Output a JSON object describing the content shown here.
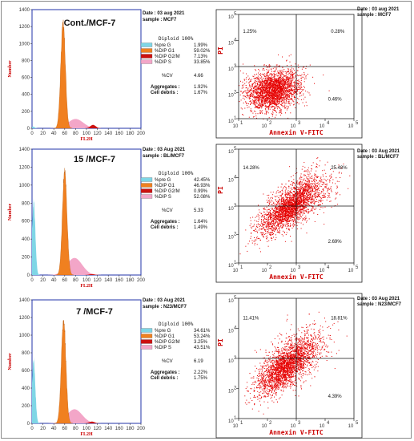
{
  "colors": {
    "pre_g": "#7fd6e6",
    "g1": "#f08020",
    "g2m": "#cc1010",
    "s": "#f3a6c8",
    "s_band": "#4a7cc8",
    "dots": "#e60000",
    "axis_blue": "#2233aa"
  },
  "histogram_axes": {
    "xlabel": "FL2H",
    "ylabel": "Number",
    "xticks": [
      "0",
      "20",
      "40",
      "60",
      "80",
      "100",
      "120",
      "140",
      "160",
      "180",
      "200"
    ],
    "yticks": [
      "0",
      "200",
      "400",
      "600",
      "800",
      "1000",
      "1200",
      "1400"
    ]
  },
  "legend_labels": {
    "diploid": "Diploid 100%",
    "pre_g": "%pre G",
    "g1": "%DIP G1",
    "g2m": "%DIP G2/M",
    "s": "%DIP S",
    "cv": "%CV",
    "aggregates": "Aggregates :",
    "debris": "Cell debris :"
  },
  "dot_axes": {
    "xlabel": "Annexin V-FITC",
    "ylabel": "PI",
    "xticks": [
      "1",
      "2",
      "3",
      "4",
      "5"
    ],
    "yticks": [
      "1",
      "2",
      "3",
      "4",
      "5"
    ],
    "tick_base": "10"
  },
  "panels": [
    {
      "title": "Cont./MCF-7",
      "date": "Date : 03 aug 2021",
      "sample": "sample : MCF7",
      "pre_g": "1.99%",
      "g1": "59.02%",
      "g2m": "7.13%",
      "s": "33.85%",
      "cv": "4.66",
      "aggregates": "1.92%",
      "debris": "1.67%",
      "quad_ul": "1.25%",
      "quad_ur": "0.28%",
      "quad_lr": "0.46%"
    },
    {
      "title": "15 /MCF-7",
      "date": "Date : 03 Aug 2021",
      "sample": "sample : BL/MCF7",
      "pre_g": "42.45%",
      "g1": "46.93%",
      "g2m": "0.99%",
      "s": "52.08%",
      "cv": "5.33",
      "aggregates": "1.64%",
      "debris": "1.49%",
      "quad_ul": "14.28%",
      "quad_ur": "25.48%",
      "quad_lr": "2.69%"
    },
    {
      "title": "7 /MCF-7",
      "date": "Date : 03 Aug 2021",
      "sample": "sample : N23/MCF7",
      "pre_g": "34.61%",
      "g1": "53.24%",
      "g2m": "3.25%",
      "s": "43.51%",
      "cv": "6.19",
      "aggregates": "2.22%",
      "debris": "1.75%",
      "quad_ul": "11.41%",
      "quad_ur": "18.81%",
      "quad_lr": "4.39%"
    }
  ],
  "chart_data": [
    {
      "type": "area",
      "title": "Cont./MCF-7",
      "xlabel": "FL2H",
      "ylabel": "Number",
      "xlim": [
        0,
        200
      ],
      "ylim": [
        0,
        1400
      ],
      "series": [
        {
          "name": "%pre G",
          "value": 1.99
        },
        {
          "name": "%DIP G1",
          "value": 59.02
        },
        {
          "name": "%DIP G2/M",
          "value": 7.13
        },
        {
          "name": "%DIP S",
          "value": 33.85
        }
      ],
      "peaks": {
        "pre_g": {
          "center": 2,
          "height": 20
        },
        "g1": {
          "center": 57,
          "height": 1260
        },
        "s": {
          "center": 80,
          "height": 110
        },
        "g2m": {
          "center": 112,
          "height": 40
        }
      },
      "cv": 4.66
    },
    {
      "type": "scatter",
      "title": "Cont./MCF-7",
      "xlabel": "Annexin V-FITC",
      "ylabel": "PI",
      "xlim": [
        1,
        5
      ],
      "ylim": [
        1,
        5
      ],
      "quadrants": {
        "upper_left": 1.25,
        "upper_right": 0.28,
        "lower_right": 0.46
      },
      "gates": {
        "x": 3,
        "y": 3
      },
      "cloud": {
        "cx": 2.2,
        "cy": 2.1,
        "sx": 0.45,
        "sy": 0.38,
        "corr": 0.2,
        "n": 2600,
        "upper_right_tail": 0.0
      }
    },
    {
      "type": "area",
      "title": "15 /MCF-7",
      "xlabel": "FL2H",
      "ylabel": "Number",
      "xlim": [
        0,
        200
      ],
      "ylim": [
        0,
        1400
      ],
      "series": [
        {
          "name": "%pre G",
          "value": 42.45
        },
        {
          "name": "%DIP G1",
          "value": 46.93
        },
        {
          "name": "%DIP G2/M",
          "value": 0.99
        },
        {
          "name": "%DIP S",
          "value": 52.08
        }
      ],
      "peaks": {
        "pre_g": {
          "center": 3,
          "height": 820
        },
        "g1": {
          "center": 60,
          "height": 1140
        },
        "s": {
          "center": 78,
          "height": 190
        },
        "g2m": {
          "center": 110,
          "height": 10
        }
      },
      "cv": 5.33
    },
    {
      "type": "scatter",
      "title": "15 /MCF-7",
      "xlabel": "Annexin V-FITC",
      "ylabel": "PI",
      "xlim": [
        1,
        5
      ],
      "ylim": [
        1,
        5
      ],
      "quadrants": {
        "upper_left": 14.28,
        "upper_right": 25.48,
        "lower_right": 2.69
      },
      "gates": {
        "x": 3,
        "y": 3
      },
      "cloud": {
        "cx": 2.7,
        "cy": 2.9,
        "sx": 0.5,
        "sy": 0.45,
        "corr": 0.75,
        "n": 2800,
        "upper_right_tail": 0.3
      }
    },
    {
      "type": "area",
      "title": "7 /MCF-7",
      "xlabel": "FL2H",
      "ylabel": "Number",
      "xlim": [
        0,
        200
      ],
      "ylim": [
        0,
        1400
      ],
      "series": [
        {
          "name": "%pre G",
          "value": 34.61
        },
        {
          "name": "%DIP G1",
          "value": 53.24
        },
        {
          "name": "%DIP G2/M",
          "value": 3.25
        },
        {
          "name": "%DIP S",
          "value": 43.51
        }
      ],
      "peaks": {
        "pre_g": {
          "center": 3,
          "height": 720
        },
        "g1": {
          "center": 58,
          "height": 1170
        },
        "s": {
          "center": 78,
          "height": 160
        },
        "g2m": {
          "center": 110,
          "height": 20
        }
      },
      "cv": 6.19
    },
    {
      "type": "scatter",
      "title": "7 /MCF-7",
      "xlabel": "Annexin V-FITC",
      "ylabel": "PI",
      "xlim": [
        1,
        5
      ],
      "ylim": [
        1,
        5
      ],
      "quadrants": {
        "upper_left": 11.41,
        "upper_right": 18.81,
        "lower_right": 4.39
      },
      "gates": {
        "x": 3,
        "y": 3
      },
      "cloud": {
        "cx": 2.6,
        "cy": 2.7,
        "sx": 0.5,
        "sy": 0.45,
        "corr": 0.7,
        "n": 2800,
        "upper_right_tail": 0.22
      }
    }
  ]
}
